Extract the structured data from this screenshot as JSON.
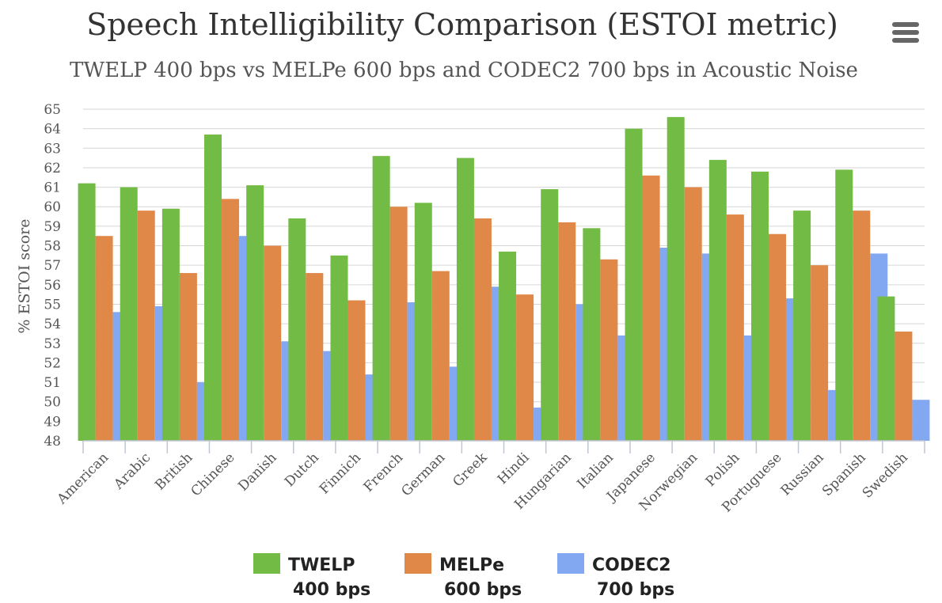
{
  "chart_data": {
    "type": "bar",
    "title": "Speech Intelligibility Comparison (ESTOI metric)",
    "subtitle": "TWELP 400 bps vs MELPe 600 bps and CODEC2 700 bps in Acoustic Noise",
    "xlabel": "",
    "ylabel": "% ESTOI score",
    "ylim": [
      48,
      65
    ],
    "yticks": [
      48,
      49,
      50,
      51,
      52,
      53,
      54,
      55,
      56,
      57,
      58,
      59,
      60,
      61,
      62,
      63,
      64,
      65
    ],
    "grid": true,
    "legend_position": "bottom",
    "categories": [
      "American",
      "Arabic",
      "British",
      "Chinese",
      "Danish",
      "Dutch",
      "Finnich",
      "French",
      "German",
      "Greek",
      "Hindi",
      "Hungarian",
      "Italian",
      "Japanese",
      "Norwegian",
      "Polish",
      "Portuguese",
      "Russian",
      "Spanish",
      "Swedish"
    ],
    "series": [
      {
        "name": "TWELP",
        "rate": "400 bps",
        "color": "#72bb44",
        "values": [
          61.2,
          61.0,
          59.9,
          63.7,
          61.1,
          59.4,
          57.5,
          62.6,
          60.2,
          62.5,
          57.7,
          60.9,
          58.9,
          64.0,
          64.6,
          62.4,
          61.8,
          59.8,
          61.9,
          55.4
        ]
      },
      {
        "name": "MELPe",
        "rate": "600 bps",
        "color": "#e08848",
        "values": [
          58.5,
          59.8,
          56.6,
          60.4,
          58.0,
          56.6,
          55.2,
          60.0,
          56.7,
          59.4,
          55.5,
          59.2,
          57.3,
          61.6,
          61.0,
          59.6,
          58.6,
          57.0,
          59.8,
          53.6
        ]
      },
      {
        "name": "CODEC2",
        "rate": "700 bps",
        "color": "#82a8f2",
        "values": [
          54.6,
          54.9,
          51.0,
          58.5,
          53.1,
          52.6,
          51.4,
          55.1,
          51.8,
          55.9,
          49.7,
          55.0,
          53.4,
          57.9,
          57.6,
          53.4,
          55.3,
          50.6,
          57.6,
          50.1
        ]
      }
    ]
  },
  "menu": {
    "icon": "hamburger-menu-icon"
  }
}
